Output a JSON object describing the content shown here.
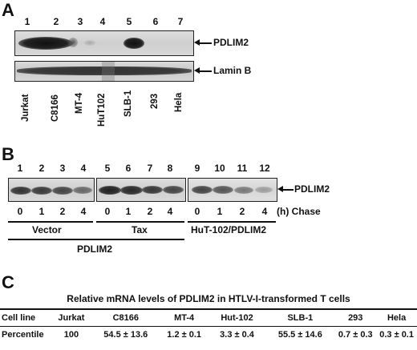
{
  "panelA": {
    "letter": "A",
    "lanes": [
      "1",
      "2",
      "3",
      "4",
      "5",
      "6",
      "7"
    ],
    "blot_labels": [
      "PDLIM2",
      "Lamin B"
    ],
    "cell_lines": [
      "Jurkat",
      "C8166",
      "MT-4",
      "HuT102",
      "SLB-1",
      "293",
      "Hela"
    ]
  },
  "panelB": {
    "letter": "B",
    "lanes": [
      "1",
      "2",
      "3",
      "4",
      "5",
      "6",
      "7",
      "8",
      "9",
      "10",
      "11",
      "12"
    ],
    "blot_label": "PDLIM2",
    "times": [
      "0",
      "1",
      "2",
      "4",
      "0",
      "1",
      "2",
      "4",
      "0",
      "1",
      "2",
      "4"
    ],
    "chase_label": "(h) Chase",
    "groups": [
      "Vector",
      "Tax",
      "HuT-102/PDLIM2"
    ],
    "bracket_label": "PDLIM2"
  },
  "panelC": {
    "letter": "C",
    "title": "Relative mRNA levels of PDLIM2 in HTLV-I-transformed T cells",
    "header": [
      "Cell line",
      "Jurkat",
      "C8166",
      "MT-4",
      "Hut-102",
      "SLB-1",
      "293",
      "Hela"
    ],
    "row": [
      "Percentile",
      "100",
      "54.5 ± 13.6",
      "1.2 ± 0.1",
      "3.3 ± 0.4",
      "55.5 ± 14.6",
      "0.7 ± 0.3",
      "0.3 ± 0.1"
    ]
  }
}
